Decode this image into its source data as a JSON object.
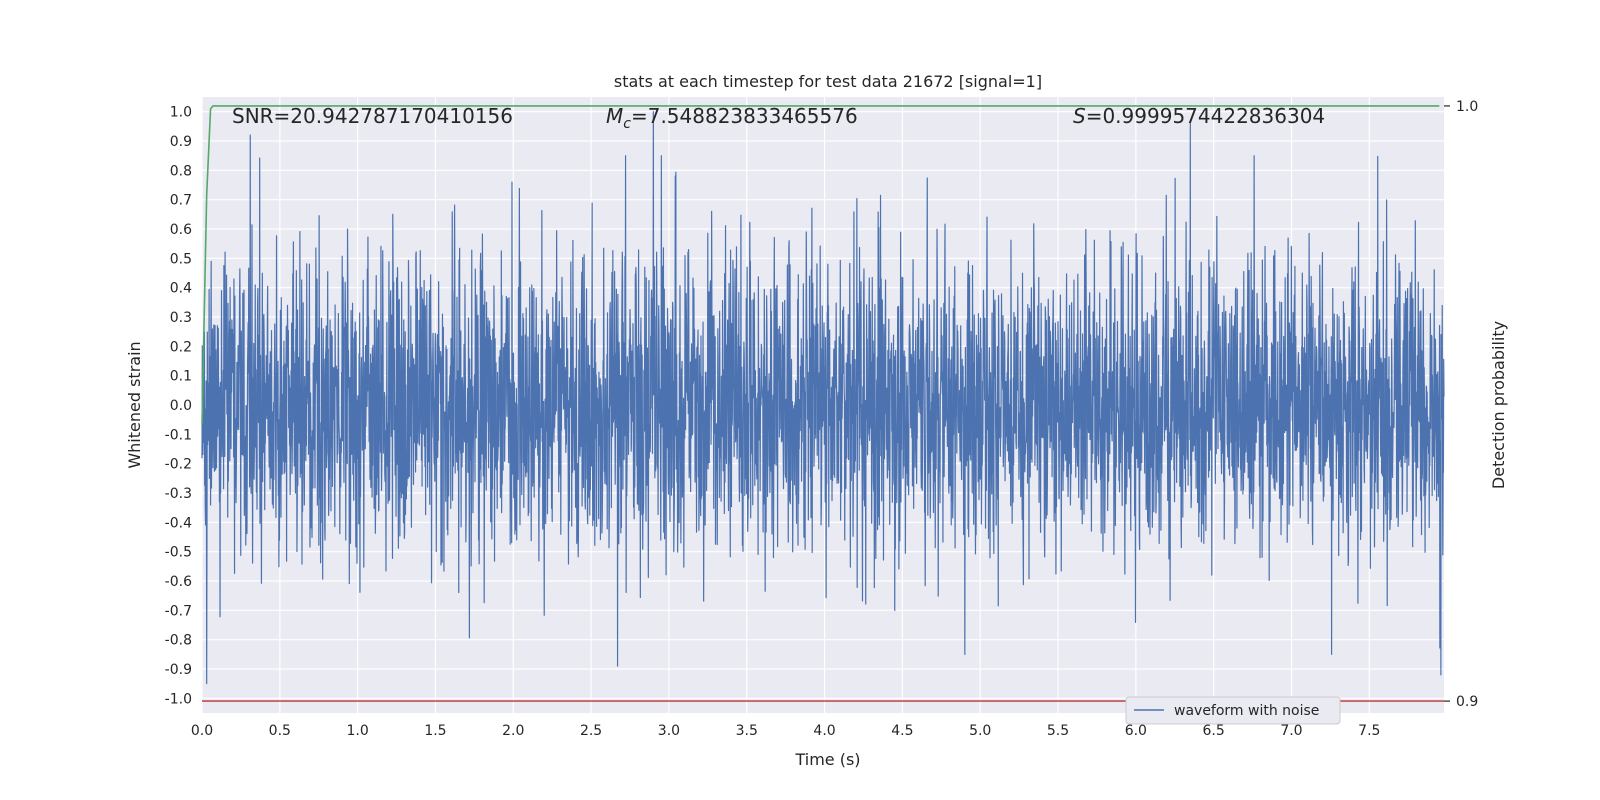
{
  "chart_data": {
    "type": "line",
    "title": "stats at each timestep for test data 21672 [signal=1]",
    "xlabel": "Time (s)",
    "ylabel": "Whitened strain",
    "y2label": "Detection probability",
    "xlim": [
      0.0,
      7.98
    ],
    "ylim": [
      -1.05,
      1.05
    ],
    "y2lim": [
      0.898,
      1.0015
    ],
    "x_ticks": [
      "0.0",
      "0.5",
      "1.0",
      "1.5",
      "2.0",
      "2.5",
      "3.0",
      "3.5",
      "4.0",
      "4.5",
      "5.0",
      "5.5",
      "6.0",
      "6.5",
      "7.0",
      "7.5"
    ],
    "y_ticks": [
      "1.0",
      "0.9",
      "0.8",
      "0.7",
      "0.6",
      "0.5",
      "0.4",
      "0.3",
      "0.2",
      "0.1",
      "0.0",
      "-0.1",
      "-0.2",
      "-0.3",
      "-0.4",
      "-0.5",
      "-0.6",
      "-0.7",
      "-0.8",
      "-0.9",
      "-1.0"
    ],
    "y2_ticks": [
      "1.0",
      "0.9"
    ],
    "grid": true,
    "legend_position": "bottom-right",
    "annotations": {
      "snr": "SNR=20.942787170410156",
      "mc_symbol": "M",
      "mc_subscript": "c",
      "mc_value": "=7.548823833465576",
      "s_symbol": "S",
      "s_value": "=0.9999574422836304"
    },
    "series": [
      {
        "name": "waveform with noise",
        "axis": "left",
        "color": "#4c72b0",
        "kind": "noise",
        "x_range": [
          0.0,
          7.98
        ],
        "approx_spread": 0.25,
        "notable_peaks": [
          {
            "x": 0.03,
            "y": -0.95
          },
          {
            "x": 0.31,
            "y": 0.92
          },
          {
            "x": 2.67,
            "y": -0.89
          },
          {
            "x": 2.9,
            "y": 1.0
          },
          {
            "x": 6.35,
            "y": 0.96
          },
          {
            "x": 7.96,
            "y": 0.93
          },
          {
            "x": 7.96,
            "y": -0.92
          }
        ]
      },
      {
        "name": "",
        "axis": "right",
        "color": "#55a868",
        "x": [
          0.0,
          0.03,
          0.055,
          0.07,
          0.1,
          7.95
        ],
        "values": [
          0.9465,
          0.985,
          0.9995,
          1.0,
          1.0,
          1.0
        ]
      },
      {
        "name": "",
        "axis": "right",
        "color": "#c44e52",
        "x": [
          0.0,
          7.98
        ],
        "values": [
          0.9,
          0.9
        ]
      }
    ]
  }
}
